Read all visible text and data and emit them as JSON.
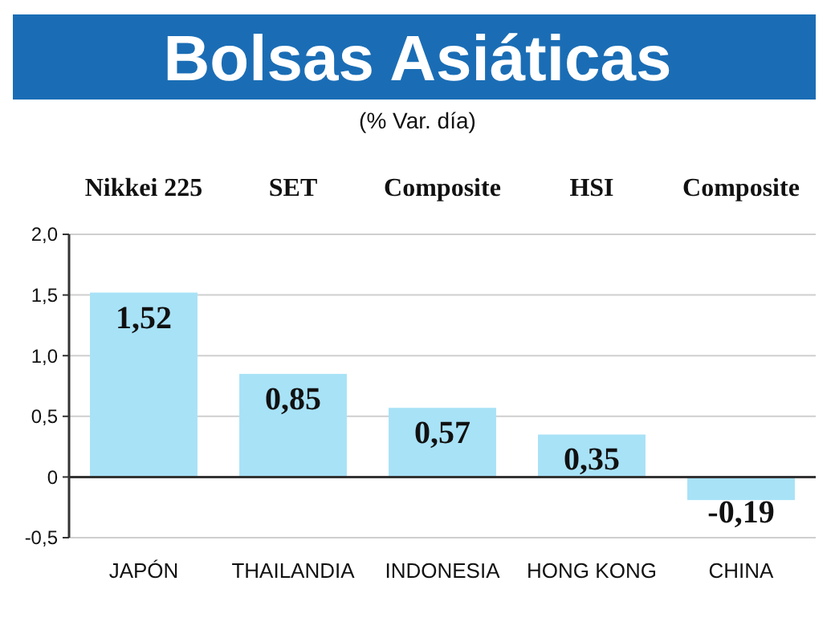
{
  "chart_data": {
    "type": "bar",
    "title": "Bolsas Asiáticas",
    "subtitle": "(% Var. día)",
    "categories": [
      "JAPÓN",
      "THAILANDIA",
      "INDONESIA",
      "HONG KONG",
      "CHINA"
    ],
    "values": [
      1.52,
      0.85,
      0.57,
      0.35,
      -0.19
    ],
    "color": "#a8e2f7",
    "value_labels": [
      "1,52",
      "0,85",
      "0,57",
      "0,35",
      "-0,19"
    ],
    "ylim": [
      -0.5,
      2.0
    ],
    "yticks": [
      {
        "value": -0.5,
        "label": "-0,5"
      },
      0,
      {
        "value": 0.5,
        "label": "0,5"
      },
      {
        "value": 1,
        "label": "1,0"
      },
      {
        "value": 1.5,
        "label": "1,5"
      },
      {
        "value": 2,
        "label": "2,0"
      }
    ],
    "grid": "y",
    "annotations": [
      "Nikkei 225",
      "SET",
      "Composite",
      "HSI",
      "Composite"
    ]
  }
}
